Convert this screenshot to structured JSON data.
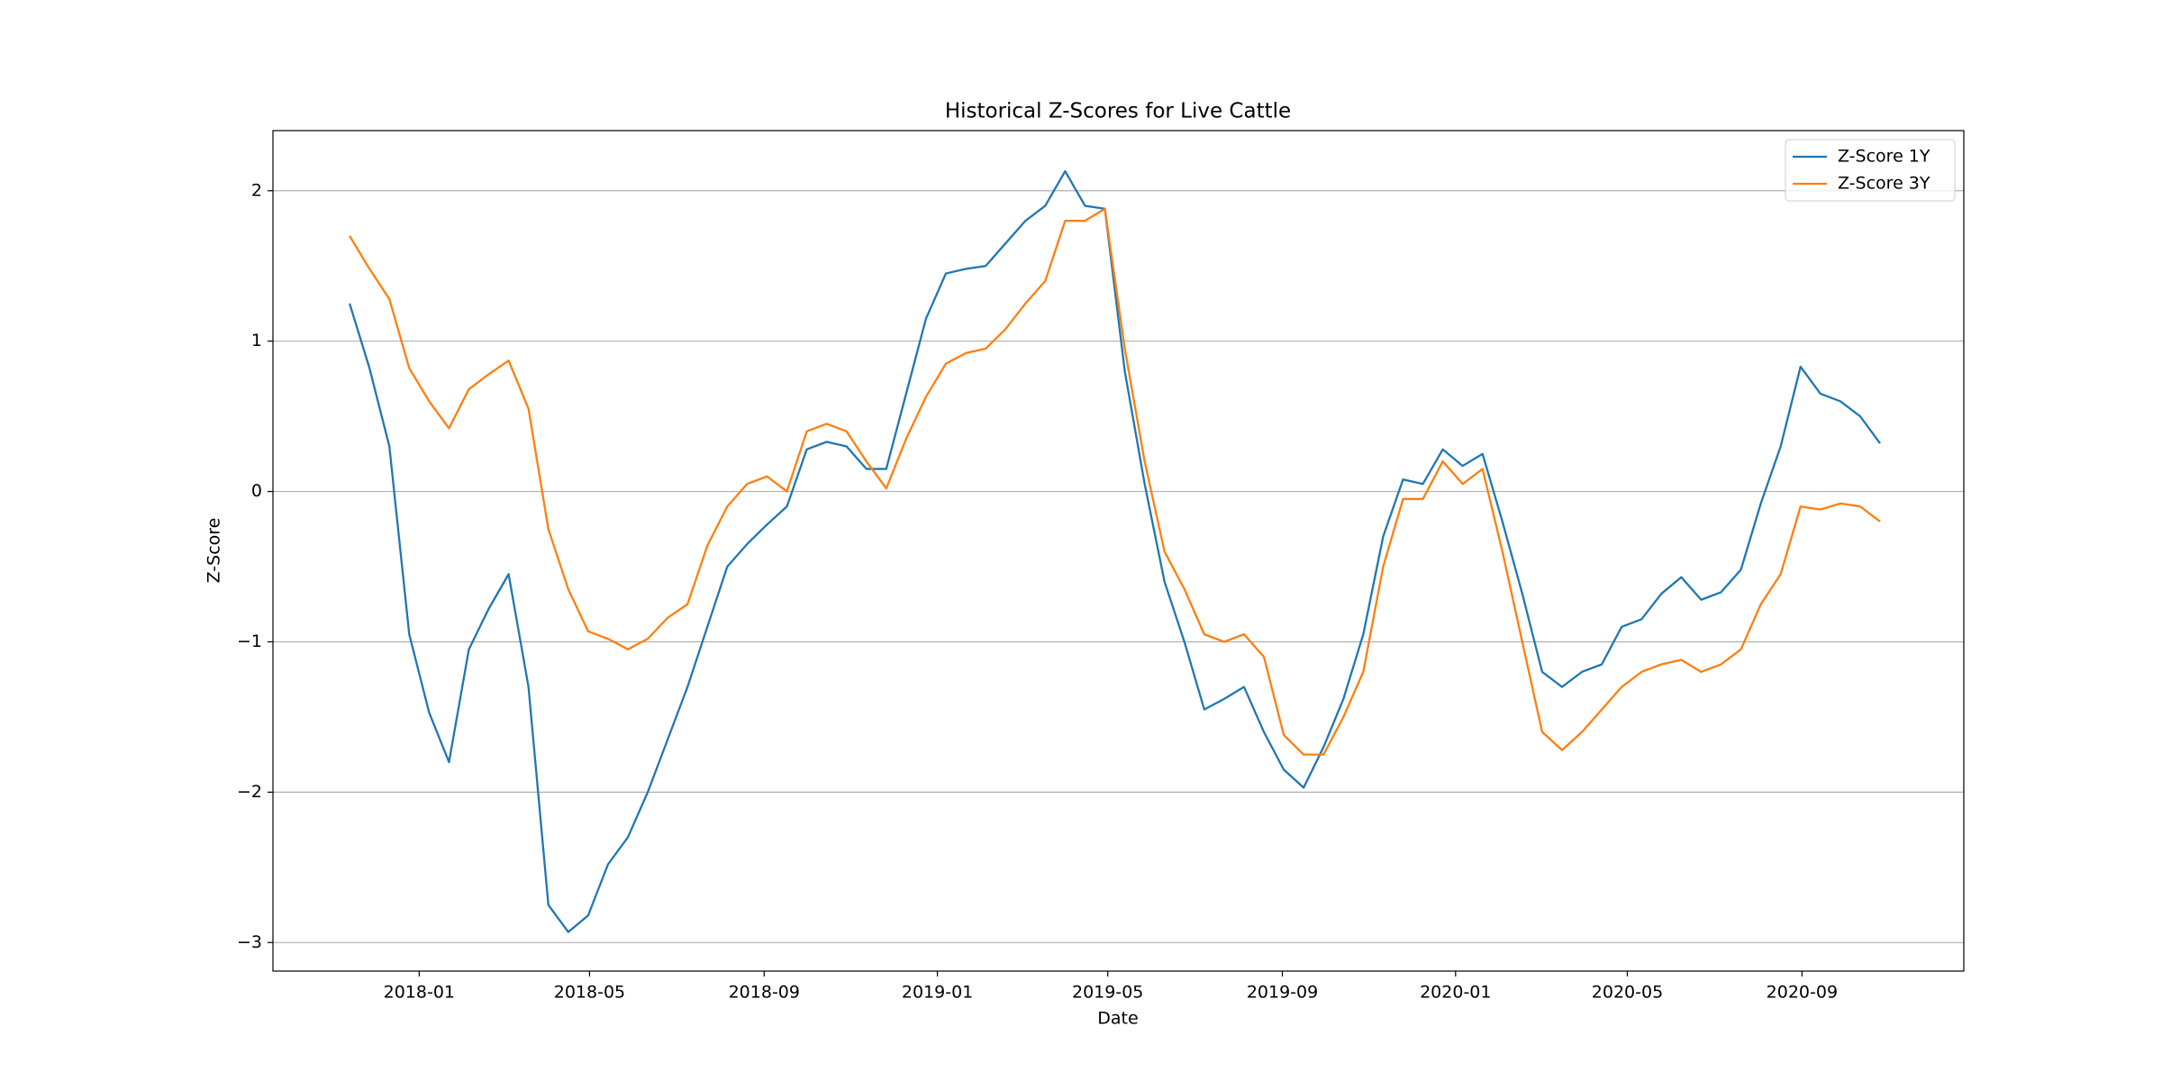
{
  "chart_data": {
    "type": "line",
    "title": "Historical Z-Scores for Live Cattle",
    "xlabel": "Date",
    "ylabel": "Z-Score",
    "x": [
      "2017-11-13",
      "2017-11-27",
      "2017-12-11",
      "2017-12-25",
      "2018-01-08",
      "2018-01-22",
      "2018-02-05",
      "2018-02-19",
      "2018-03-05",
      "2018-03-19",
      "2018-04-02",
      "2018-04-16",
      "2018-04-30",
      "2018-05-14",
      "2018-05-28",
      "2018-06-11",
      "2018-06-25",
      "2018-07-09",
      "2018-07-23",
      "2018-08-06",
      "2018-08-20",
      "2018-09-03",
      "2018-09-17",
      "2018-10-01",
      "2018-10-15",
      "2018-10-29",
      "2018-11-12",
      "2018-11-26",
      "2018-12-10",
      "2018-12-24",
      "2019-01-07",
      "2019-01-21",
      "2019-02-04",
      "2019-02-18",
      "2019-03-04",
      "2019-03-18",
      "2019-04-01",
      "2019-04-15",
      "2019-04-29",
      "2019-05-13",
      "2019-05-27",
      "2019-06-10",
      "2019-06-24",
      "2019-07-08",
      "2019-07-22",
      "2019-08-05",
      "2019-08-19",
      "2019-09-02",
      "2019-09-16",
      "2019-09-30",
      "2019-10-14",
      "2019-10-28",
      "2019-11-11",
      "2019-11-25",
      "2019-12-09",
      "2019-12-23",
      "2020-01-06",
      "2020-01-20",
      "2020-02-03",
      "2020-02-17",
      "2020-03-02",
      "2020-03-16",
      "2020-03-30",
      "2020-04-13",
      "2020-04-27",
      "2020-05-11",
      "2020-05-25",
      "2020-06-08",
      "2020-06-22",
      "2020-07-06",
      "2020-07-20",
      "2020-08-03",
      "2020-08-17",
      "2020-08-31",
      "2020-09-14",
      "2020-09-28",
      "2020-10-12",
      "2020-10-26"
    ],
    "series": [
      {
        "name": "Z-Score 1Y",
        "color": "#1f77b4",
        "values": [
          1.25,
          0.82,
          0.3,
          -0.95,
          -1.47,
          -1.8,
          -1.05,
          -0.78,
          -0.55,
          -1.3,
          -2.75,
          -2.93,
          -2.82,
          -2.48,
          -2.3,
          -2.0,
          -1.65,
          -1.3,
          -0.9,
          -0.5,
          -0.35,
          -0.22,
          -0.1,
          0.28,
          0.33,
          0.3,
          0.15,
          0.15,
          0.65,
          1.15,
          1.45,
          1.48,
          1.5,
          1.65,
          1.8,
          1.9,
          2.13,
          1.9,
          1.88,
          0.8,
          0.05,
          -0.6,
          -1.0,
          -1.45,
          -1.38,
          -1.3,
          -1.6,
          -1.85,
          -1.97,
          -1.7,
          -1.38,
          -0.95,
          -0.3,
          0.08,
          0.05,
          0.28,
          0.17,
          0.25,
          -0.2,
          -0.68,
          -1.2,
          -1.3,
          -1.2,
          -1.15,
          -0.9,
          -0.85,
          -0.68,
          -0.57,
          -0.72,
          -0.67,
          -0.52,
          -0.08,
          0.3,
          0.83,
          0.65,
          0.6,
          0.5,
          0.32
        ]
      },
      {
        "name": "Z-Score 3Y",
        "color": "#ff7f0e",
        "values": [
          1.7,
          1.48,
          1.28,
          0.82,
          0.6,
          0.42,
          0.68,
          0.78,
          0.87,
          0.55,
          -0.25,
          -0.65,
          -0.93,
          -0.98,
          -1.05,
          -0.98,
          -0.84,
          -0.75,
          -0.36,
          -0.1,
          0.05,
          0.1,
          0.0,
          0.4,
          0.45,
          0.4,
          0.2,
          0.02,
          0.35,
          0.63,
          0.85,
          0.92,
          0.95,
          1.08,
          1.25,
          1.4,
          1.8,
          1.8,
          1.88,
          0.95,
          0.2,
          -0.4,
          -0.65,
          -0.95,
          -1.0,
          -0.95,
          -1.1,
          -1.62,
          -1.75,
          -1.75,
          -1.5,
          -1.2,
          -0.5,
          -0.05,
          -0.05,
          0.2,
          0.05,
          0.15,
          -0.4,
          -1.0,
          -1.6,
          -1.72,
          -1.6,
          -1.45,
          -1.3,
          -1.2,
          -1.15,
          -1.12,
          -1.2,
          -1.15,
          -1.05,
          -0.75,
          -0.55,
          -0.1,
          -0.12,
          -0.08,
          -0.1,
          -0.2
        ]
      }
    ],
    "xlim": [
      "2017-09-20",
      "2020-12-24"
    ],
    "xticks": [
      "2018-01",
      "2018-05",
      "2018-09",
      "2019-01",
      "2019-05",
      "2019-09",
      "2020-01",
      "2020-05",
      "2020-09"
    ],
    "ylim": [
      -3.19,
      2.4
    ],
    "yticks": [
      {
        "value": -3,
        "label": "−3"
      },
      {
        "value": -2,
        "label": "−2"
      },
      {
        "value": -1,
        "label": "−1"
      },
      0,
      1,
      2
    ],
    "grid": "y",
    "legend": "upper right"
  }
}
